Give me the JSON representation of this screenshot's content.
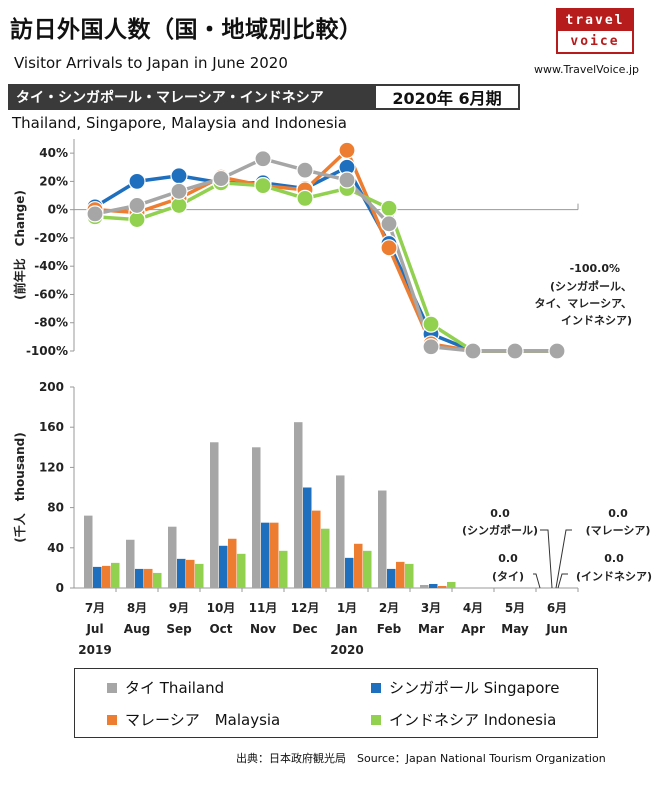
{
  "header": {
    "title": "訪日外国人数（国・地域別比較）",
    "subtitle": "Visitor Arrivals to Japan in June 2020",
    "logo_line1": "travel",
    "logo_line2": "voice",
    "website": "www.TravelVoice.jp",
    "countries_jp": "タイ・シンガポール・マレーシア・インドネシア",
    "period": "2020年 6月期",
    "countries_en": "Thailand, Singapore, Malaysia and Indonesia"
  },
  "source": "出典：日本政府観光局　Source：Japan National Tourism Organization",
  "colors": {
    "thailand": "#a6a6a6",
    "singapore": "#1f6fbf",
    "malaysia": "#ed7d31",
    "indonesia": "#92d050"
  },
  "chart_data": [
    {
      "type": "line",
      "ylabel": "(前年比　Change)",
      "ylim": [
        -100,
        50
      ],
      "yticks": [
        "40%",
        "20%",
        "0%",
        "-20%",
        "-40%",
        "-60%",
        "-80%",
        "-100%"
      ],
      "ytick_values": [
        40,
        20,
        0,
        -20,
        -40,
        -60,
        -80,
        -100
      ],
      "categories": [
        "7月 Jul",
        "8月 Aug",
        "9月 Sep",
        "10月 Oct",
        "11月 Nov",
        "12月 Dec",
        "1月 Jan",
        "2月 Feb",
        "3月 Mar",
        "4月 Apr",
        "5月 May",
        "6月 Jun"
      ],
      "series": [
        {
          "name": "シンガポール Singapore",
          "key": "singapore",
          "values": [
            2,
            20,
            24,
            19,
            19,
            15,
            30,
            -24,
            -88,
            -100,
            -100,
            -100
          ]
        },
        {
          "name": "マレーシア Malaysia",
          "key": "malaysia",
          "values": [
            0,
            -2,
            8,
            23,
            17,
            14,
            42,
            -27,
            -95,
            -100,
            -100,
            -100
          ]
        },
        {
          "name": "インドネシア Indonesia",
          "key": "indonesia",
          "values": [
            -5,
            -7,
            3,
            19,
            17,
            8,
            15,
            1,
            -81,
            -100,
            -100,
            -100
          ]
        },
        {
          "name": "タイ Thailand",
          "key": "thailand",
          "values": [
            -3,
            3,
            13,
            22,
            36,
            28,
            21,
            -10,
            -97,
            -100,
            -100,
            -100
          ]
        }
      ],
      "annotation": {
        "value": "-100.0%",
        "lines": [
          "(シンガポール、",
          "タイ、マレーシア、",
          "インドネシア)"
        ]
      }
    },
    {
      "type": "bar",
      "ylabel": "(千人　thousand)",
      "ylim": [
        0,
        200
      ],
      "yticks": [
        "200",
        "160",
        "120",
        "80",
        "40",
        "0"
      ],
      "ytick_values": [
        200,
        160,
        120,
        80,
        40,
        0
      ],
      "categories": [
        "7月",
        "8月",
        "9月",
        "10月",
        "11月",
        "12月",
        "1月",
        "2月",
        "3月",
        "4月",
        "5月",
        "6月"
      ],
      "categories_en": [
        "Jul",
        "Aug",
        "Sep",
        "Oct",
        "Nov",
        "Dec",
        "Jan",
        "Feb",
        "Mar",
        "Apr",
        "May",
        "Jun"
      ],
      "year_labels": {
        "0": "2019",
        "6": "2020"
      },
      "series": [
        {
          "name": "タイ Thailand",
          "key": "thailand",
          "values": [
            72,
            48,
            61,
            145,
            140,
            165,
            112,
            97,
            3,
            0,
            0,
            0
          ]
        },
        {
          "name": "シンガポール Singapore",
          "key": "singapore",
          "values": [
            21,
            19,
            29,
            42,
            65,
            100,
            30,
            19,
            4,
            0,
            0,
            0
          ]
        },
        {
          "name": "マレーシア Malaysia",
          "key": "malaysia",
          "values": [
            22,
            19,
            28,
            49,
            65,
            77,
            44,
            26,
            2,
            0,
            0,
            0
          ]
        },
        {
          "name": "インドネシア Indonesia",
          "key": "indonesia",
          "values": [
            25,
            15,
            24,
            34,
            37,
            59,
            37,
            24,
            6,
            0,
            0,
            0
          ]
        }
      ],
      "annotations": [
        {
          "value": "0.0",
          "label": "(シンガポール)"
        },
        {
          "value": "0.0",
          "label": "(マレーシア)"
        },
        {
          "value": "0.0",
          "label": "(タイ)"
        },
        {
          "value": "0.0",
          "label": "(インドネシア)"
        }
      ]
    }
  ],
  "legend": [
    {
      "key": "thailand",
      "label": "タイ Thailand"
    },
    {
      "key": "singapore",
      "label": "シンガポール Singapore"
    },
    {
      "key": "malaysia",
      "label": "マレーシア　Malaysia"
    },
    {
      "key": "indonesia",
      "label": "インドネシア Indonesia"
    }
  ]
}
